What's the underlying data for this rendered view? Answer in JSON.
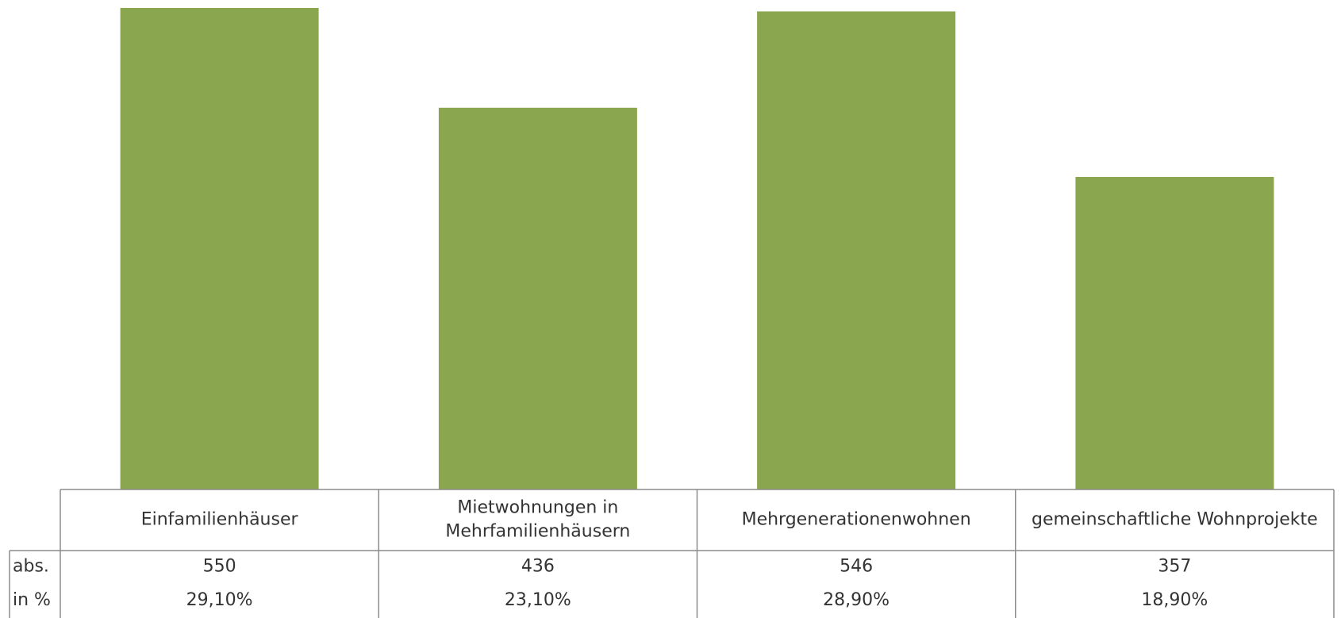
{
  "chart_data": {
    "type": "bar",
    "categories": [
      [
        "Einfamilienhäuser"
      ],
      [
        "Mietwohnungen in",
        "Mehrfamilienhäusern"
      ],
      [
        "Mehrgenerationenwohnen"
      ],
      [
        "gemeinschaftliche Wohnprojekte"
      ]
    ],
    "series": [
      {
        "values": [
          550,
          436,
          546,
          357
        ]
      }
    ],
    "table_rows": [
      {
        "label": "abs.",
        "cells": [
          "550",
          "436",
          "546",
          "357"
        ]
      },
      {
        "label": "in %",
        "cells": [
          "29,10%",
          "23,10%",
          "28,90%",
          "18,90%"
        ]
      }
    ],
    "ylim": [
      0,
      550
    ],
    "bar_color": "#8aa64f",
    "grid": false,
    "legend": "none"
  }
}
